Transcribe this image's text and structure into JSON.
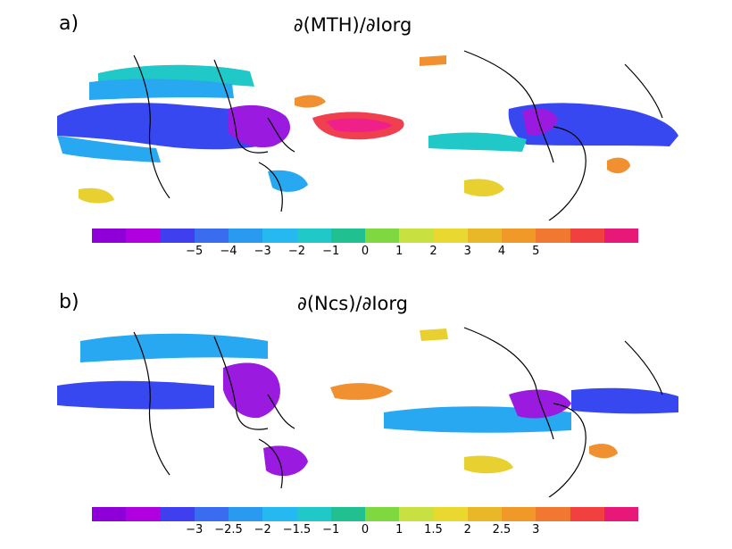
{
  "panels": [
    {
      "label": "a)",
      "title": "∂(MTH)/∂Iorg",
      "colorbar": {
        "colors": [
          "#8f00d8",
          "#b000e0",
          "#3f3ff0",
          "#3a6cf0",
          "#2a9af0",
          "#26b8f0",
          "#20c8c8",
          "#20c090",
          "#80d840",
          "#c8e040",
          "#e8d830",
          "#e8b828",
          "#f09828",
          "#f07830",
          "#f04040",
          "#e81878"
        ],
        "ticks": [
          "−5",
          "−4",
          "−3",
          "−2",
          "−1",
          "0",
          "1",
          "2",
          "3",
          "4",
          "5"
        ]
      }
    },
    {
      "label": "b)",
      "title": "∂(Ncs)/∂Iorg",
      "colorbar": {
        "colors": [
          "#8f00d8",
          "#b000e0",
          "#3f3ff0",
          "#3a6cf0",
          "#2a9af0",
          "#26b8f0",
          "#20c8c8",
          "#20c090",
          "#80d840",
          "#c8e040",
          "#e8d830",
          "#e8b828",
          "#f09828",
          "#f07830",
          "#f04040",
          "#e81878"
        ],
        "ticks": [
          "−3",
          "−2.5",
          "−2",
          "−1.5",
          "−1",
          "0",
          "1",
          "1.5",
          "2",
          "2.5",
          "3"
        ]
      }
    }
  ],
  "palette": {
    "purple": "#9a1ae0",
    "blue": "#3848f0",
    "lightblue": "#28a8f0",
    "cyan": "#20c8c8",
    "yellow": "#e8d030",
    "orange": "#f09030",
    "red": "#f04050",
    "magenta": "#f0208a"
  }
}
